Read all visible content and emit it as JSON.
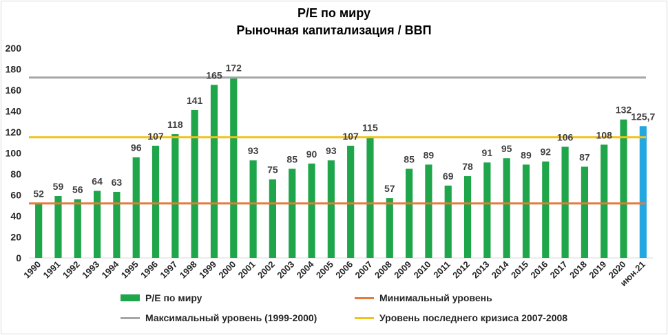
{
  "chart_data": {
    "type": "bar",
    "title": "P/E по миру",
    "subtitle": "Рыночная  капитализация / ВВП",
    "categories": [
      "1990",
      "1991",
      "1992",
      "1993",
      "1994",
      "1995",
      "1996",
      "1997",
      "1998",
      "1999",
      "2000",
      "2001",
      "2002",
      "2003",
      "2004",
      "2005",
      "2006",
      "2007",
      "2008",
      "2009",
      "2010",
      "2011",
      "2012",
      "2013",
      "2014",
      "2015",
      "2016",
      "2017",
      "2018",
      "2019",
      "2020",
      "июн.21"
    ],
    "series": [
      {
        "name": "P/E по миру",
        "values": [
          52,
          59,
          56,
          64,
          63,
          96,
          107,
          118,
          141,
          165,
          172,
          93,
          75,
          85,
          90,
          93,
          107,
          115,
          57,
          85,
          89,
          69,
          78,
          91,
          95,
          89,
          92,
          106,
          87,
          108,
          132,
          125.7
        ],
        "labels": [
          "52",
          "59",
          "56",
          "64",
          "63",
          "96",
          "107",
          "118",
          "141",
          "165",
          "172",
          "93",
          "75",
          "85",
          "90",
          "93",
          "107",
          "115",
          "57",
          "85",
          "89",
          "69",
          "78",
          "91",
          "95",
          "89",
          "92",
          "106",
          "87",
          "108",
          "132",
          "125,7"
        ],
        "color": "#1fa54a",
        "highlight_color": "#22a7e0",
        "highlight_index": 31
      }
    ],
    "reference_lines": [
      {
        "name": "Минимальный уровень",
        "value": 52,
        "color": "#e57a3a"
      },
      {
        "name": "Максимальный уровень (1999-2000)",
        "value": 172,
        "color": "#a6a6a6"
      },
      {
        "name": "Уровень последнего кризиса 2007-2008",
        "value": 115,
        "color": "#f2c31b"
      }
    ],
    "ylim": [
      0,
      200
    ],
    "yticks": [
      0,
      20,
      40,
      60,
      80,
      100,
      120,
      140,
      160,
      180,
      200
    ],
    "grid": false,
    "legend_position": "bottom",
    "xlabel": "",
    "ylabel": ""
  }
}
